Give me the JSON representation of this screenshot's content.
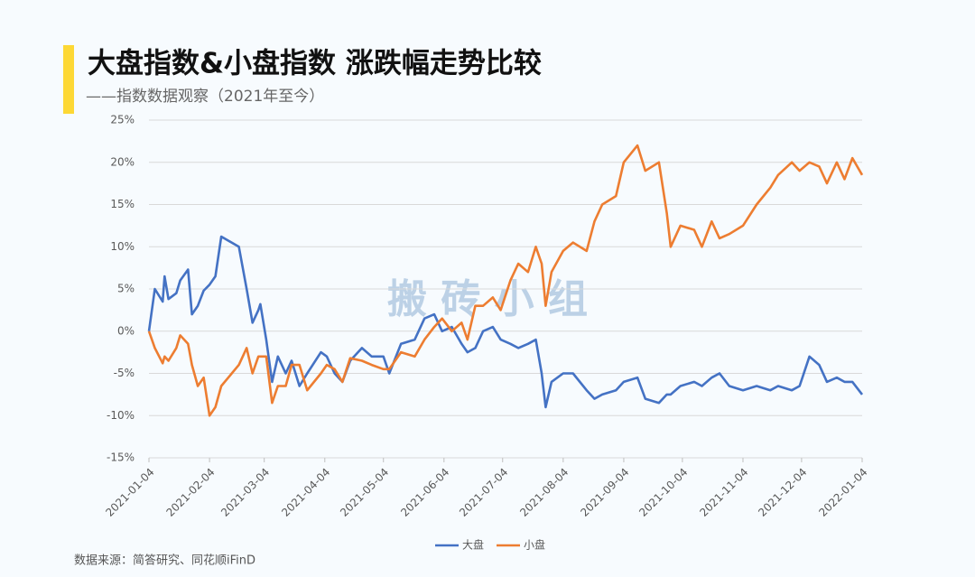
{
  "chart_data": {
    "type": "line",
    "title": "大盘指数&小盘指数 涨跌幅走势比较",
    "subtitle": "——指数数据观察（2021年至今）",
    "source": "数据来源：简答研究、同花顺iFinD",
    "watermark": "搬 砖 小 组",
    "x": [
      "2021-01-04",
      "2021-01-07",
      "2021-01-11",
      "2021-01-12",
      "2021-01-14",
      "2021-01-18",
      "2021-01-20",
      "2021-01-24",
      "2021-01-26",
      "2021-01-29",
      "2021-02-01",
      "2021-02-04",
      "2021-02-07",
      "2021-02-10",
      "2021-02-19",
      "2021-02-23",
      "2021-02-26",
      "2021-03-01",
      "2021-03-02",
      "2021-03-05",
      "2021-03-08",
      "2021-03-11",
      "2021-03-15",
      "2021-03-18",
      "2021-03-22",
      "2021-03-26",
      "2021-04-02",
      "2021-04-05",
      "2021-04-09",
      "2021-04-13",
      "2021-04-17",
      "2021-04-23",
      "2021-04-28",
      "2021-05-04",
      "2021-05-07",
      "2021-05-13",
      "2021-05-20",
      "2021-05-25",
      "2021-05-30",
      "2021-06-03",
      "2021-06-08",
      "2021-06-13",
      "2021-06-16",
      "2021-06-20",
      "2021-06-24",
      "2021-06-29",
      "2021-07-03",
      "2021-07-08",
      "2021-07-12",
      "2021-07-17",
      "2021-07-21",
      "2021-07-24",
      "2021-07-26",
      "2021-07-29",
      "2021-08-04",
      "2021-08-09",
      "2021-08-16",
      "2021-08-20",
      "2021-08-24",
      "2021-08-31",
      "2021-09-04",
      "2021-09-11",
      "2021-09-15",
      "2021-09-22",
      "2021-09-26",
      "2021-09-28",
      "2021-10-03",
      "2021-10-10",
      "2021-10-14",
      "2021-10-19",
      "2021-10-23",
      "2021-10-28",
      "2021-11-04",
      "2021-11-11",
      "2021-11-18",
      "2021-11-22",
      "2021-11-29",
      "2021-12-03",
      "2021-12-08",
      "2021-12-13",
      "2021-12-17",
      "2021-12-22",
      "2021-12-26",
      "2021-12-30",
      "2022-01-04"
    ],
    "series": [
      {
        "name": "大盘",
        "color": "#4472c4",
        "values": [
          0,
          5,
          3.5,
          6.5,
          3.8,
          4.5,
          6,
          7.3,
          2,
          3,
          4.8,
          5.5,
          6.5,
          11.2,
          10,
          5,
          1,
          2.5,
          3.2,
          -1,
          -6,
          -3,
          -5,
          -3.5,
          -6.5,
          -5,
          -2.5,
          -3,
          -5,
          -6,
          -3.5,
          -2,
          -3,
          -3,
          -5,
          -1.5,
          -1,
          1.5,
          2,
          0,
          0.5,
          -1.5,
          -2.5,
          -2,
          0,
          0.5,
          -1,
          -1.5,
          -2,
          -1.5,
          -1,
          -5,
          -9,
          -6,
          -5,
          -5,
          -7,
          -8,
          -7.5,
          -7,
          -6,
          -5.5,
          -8,
          -8.5,
          -7.5,
          -7.5,
          -6.5,
          -6,
          -6.5,
          -5.5,
          -5,
          -6.5,
          -7,
          -6.5,
          -7,
          -6.5,
          -7,
          -6.5,
          -3,
          -4,
          -6,
          -5.5,
          -6,
          -6,
          -7.5
        ]
      },
      {
        "name": "小盘",
        "color": "#ed7d31",
        "values": [
          0,
          -2,
          -3.8,
          -3,
          -3.5,
          -2,
          -0.5,
          -1.5,
          -4,
          -6.5,
          -5.5,
          -10,
          -9,
          -6.5,
          -4,
          -2,
          -5,
          -3,
          -3,
          -3,
          -8.5,
          -6.5,
          -6.5,
          -4,
          -4,
          -7,
          -5,
          -4,
          -4.5,
          -6,
          -3.2,
          -3.5,
          -4,
          -4.5,
          -4.5,
          -2.5,
          -3,
          -1,
          0.5,
          1.5,
          0,
          1,
          -1,
          3,
          3,
          4,
          2.5,
          6,
          8,
          7,
          10,
          8,
          3,
          7,
          9.5,
          10.5,
          9.5,
          13,
          15,
          16,
          20,
          22,
          19,
          20,
          14,
          10,
          12.5,
          12,
          10,
          13,
          11,
          11.5,
          12.5,
          15,
          17,
          18.5,
          20,
          19,
          20,
          19.5,
          17.5,
          20,
          18,
          20.5,
          18.5
        ]
      }
    ],
    "xlim": [
      "2021-01-04",
      "2022-01-04"
    ],
    "xticks": [
      "2021-01-04",
      "2021-02-04",
      "2021-03-04",
      "2021-04-04",
      "2021-05-04",
      "2021-06-04",
      "2021-07-04",
      "2021-08-04",
      "2021-09-04",
      "2021-10-04",
      "2021-11-04",
      "2021-12-04",
      "2022-01-04"
    ],
    "ylim": [
      -15,
      25
    ],
    "yticks": [
      {
        "value": -15,
        "label": "-15%"
      },
      {
        "value": -10,
        "label": "-10%"
      },
      {
        "value": -5,
        "label": "-5%"
      },
      {
        "value": 0,
        "label": "0%"
      },
      {
        "value": 5,
        "label": "5%"
      },
      {
        "value": 10,
        "label": "10%"
      },
      {
        "value": 15,
        "label": "15%"
      },
      {
        "value": 20,
        "label": "20%"
      },
      {
        "value": 25,
        "label": "25%"
      }
    ],
    "grid": true,
    "legend": "bottom"
  }
}
